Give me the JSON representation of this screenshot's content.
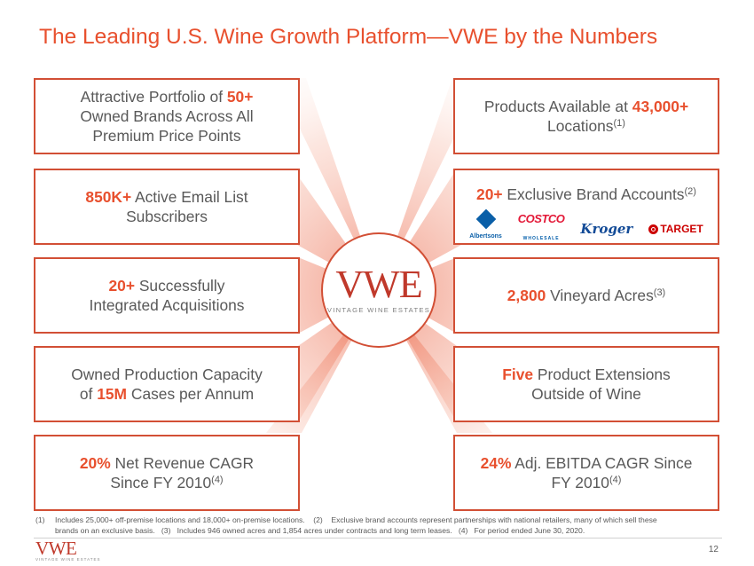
{
  "title": "The Leading U.S. Wine Growth Platform—VWE by the Numbers",
  "left_boxes": [
    {
      "lines": [
        [
          "",
          "Attractive Portfolio of ",
          "50+"
        ],
        [
          "",
          "Owned Brands Across All",
          ""
        ],
        [
          "",
          "Premium Price Points",
          ""
        ]
      ]
    },
    {
      "hl": "850K+",
      "line1_rest": " Active Email List",
      "line2": "Subscribers"
    },
    {
      "hl": "20+",
      "line1_rest": " Successfully",
      "line2": "Integrated Acquisitions"
    },
    {
      "line1": "Owned Production Capacity",
      "line2_pre": "of ",
      "hl": "15M",
      "line2_post": " Cases per Annum"
    },
    {
      "hl": "20%",
      "line1_rest": " Net Revenue CAGR",
      "line2": "Since FY 2010",
      "sup": "(4)"
    }
  ],
  "box1": {
    "pre": "Attractive Portfolio of ",
    "hl": "50+",
    "line2": "Owned Brands Across All",
    "line3": "Premium Price Points"
  },
  "right_boxes": {
    "r1": {
      "pre": "Products Available at ",
      "hl": "43,000+",
      "line2": "Locations",
      "sup": "(1)"
    },
    "r2": {
      "hl": "20+",
      "rest": " Exclusive Brand Accounts",
      "sup": "(2)"
    },
    "r3": {
      "hl": "2,800",
      "rest": " Vineyard Acres",
      "sup": "(3)"
    },
    "r4": {
      "hl": "Five",
      "rest": " Product Extensions",
      "line2": "Outside of Wine"
    },
    "r5": {
      "hl": "24%",
      "rest": " Adj. EBITDA CAGR Since",
      "line2": "FY 2010",
      "sup": "(4)"
    }
  },
  "retailer_logos": {
    "albertsons": "Albertsons",
    "costco": "COSTCO",
    "costco_sub": "WHOLESALE",
    "kroger": "Kroger",
    "target": "TARGET"
  },
  "center_logo": {
    "mark": "VWE",
    "subtitle": "VINTAGE WINE ESTATES"
  },
  "footnotes": {
    "n1": "(1)",
    "t1": "Includes 25,000+ off-premise locations and 18,000+ on-premise locations.",
    "n2": "(2)",
    "t2": "Exclusive brand accounts represent partnerships with national retailers, many of which sell these",
    "t2b": "brands on an exclusive basis.",
    "n3": "(3)",
    "t3": "Includes 946 owned acres and 1,854 acres under contracts and long term leases.",
    "n4": "(4)",
    "t4": "For period ended June 30, 2020."
  },
  "footer": {
    "mark": "VWE",
    "subtitle": "VINTAGE WINE ESTATES",
    "page": "12"
  },
  "colors": {
    "accent": "#E8502E",
    "border": "#D24F35",
    "text": "#595959"
  }
}
